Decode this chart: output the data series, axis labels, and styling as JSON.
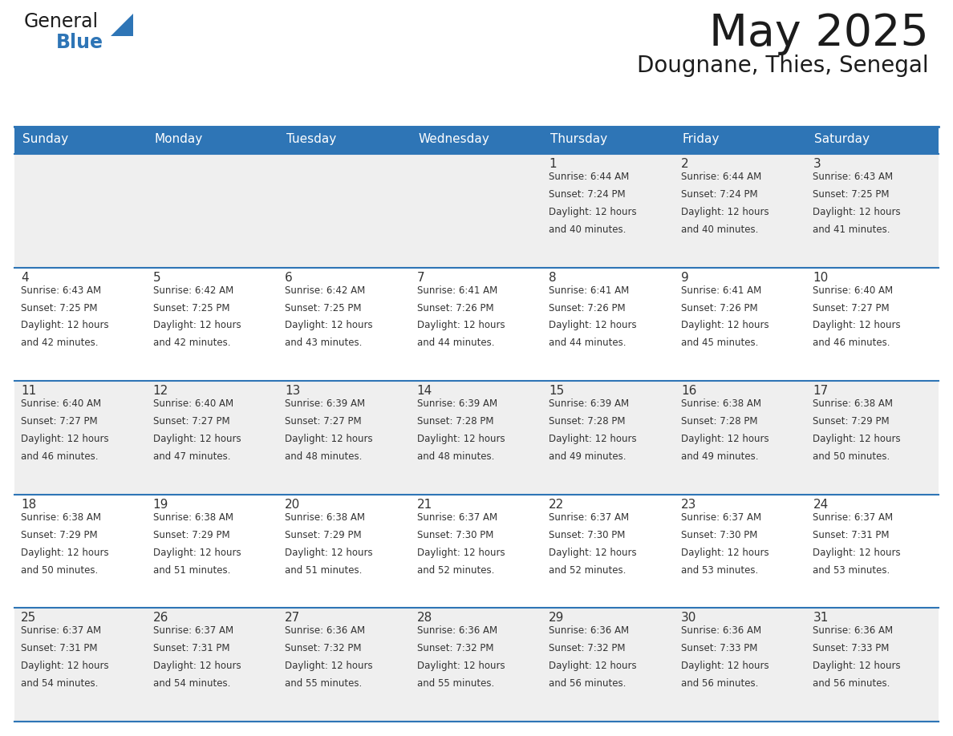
{
  "title": "May 2025",
  "subtitle": "Dougnane, Thies, Senegal",
  "header_bg": "#2E75B6",
  "header_text_color": "#FFFFFF",
  "days_of_week": [
    "Sunday",
    "Monday",
    "Tuesday",
    "Wednesday",
    "Thursday",
    "Friday",
    "Saturday"
  ],
  "row_bg_even": "#EFEFEF",
  "row_bg_odd": "#FFFFFF",
  "cell_text_color": "#333333",
  "day_num_color": "#333333",
  "grid_color": "#2E75B6",
  "calendar": [
    [
      {
        "day": null,
        "sunrise": null,
        "sunset": null,
        "daylight": null
      },
      {
        "day": null,
        "sunrise": null,
        "sunset": null,
        "daylight": null
      },
      {
        "day": null,
        "sunrise": null,
        "sunset": null,
        "daylight": null
      },
      {
        "day": null,
        "sunrise": null,
        "sunset": null,
        "daylight": null
      },
      {
        "day": 1,
        "sunrise": "6:44 AM",
        "sunset": "7:24 PM",
        "daylight": "12 hours\nand 40 minutes."
      },
      {
        "day": 2,
        "sunrise": "6:44 AM",
        "sunset": "7:24 PM",
        "daylight": "12 hours\nand 40 minutes."
      },
      {
        "day": 3,
        "sunrise": "6:43 AM",
        "sunset": "7:25 PM",
        "daylight": "12 hours\nand 41 minutes."
      }
    ],
    [
      {
        "day": 4,
        "sunrise": "6:43 AM",
        "sunset": "7:25 PM",
        "daylight": "12 hours\nand 42 minutes."
      },
      {
        "day": 5,
        "sunrise": "6:42 AM",
        "sunset": "7:25 PM",
        "daylight": "12 hours\nand 42 minutes."
      },
      {
        "day": 6,
        "sunrise": "6:42 AM",
        "sunset": "7:25 PM",
        "daylight": "12 hours\nand 43 minutes."
      },
      {
        "day": 7,
        "sunrise": "6:41 AM",
        "sunset": "7:26 PM",
        "daylight": "12 hours\nand 44 minutes."
      },
      {
        "day": 8,
        "sunrise": "6:41 AM",
        "sunset": "7:26 PM",
        "daylight": "12 hours\nand 44 minutes."
      },
      {
        "day": 9,
        "sunrise": "6:41 AM",
        "sunset": "7:26 PM",
        "daylight": "12 hours\nand 45 minutes."
      },
      {
        "day": 10,
        "sunrise": "6:40 AM",
        "sunset": "7:27 PM",
        "daylight": "12 hours\nand 46 minutes."
      }
    ],
    [
      {
        "day": 11,
        "sunrise": "6:40 AM",
        "sunset": "7:27 PM",
        "daylight": "12 hours\nand 46 minutes."
      },
      {
        "day": 12,
        "sunrise": "6:40 AM",
        "sunset": "7:27 PM",
        "daylight": "12 hours\nand 47 minutes."
      },
      {
        "day": 13,
        "sunrise": "6:39 AM",
        "sunset": "7:27 PM",
        "daylight": "12 hours\nand 48 minutes."
      },
      {
        "day": 14,
        "sunrise": "6:39 AM",
        "sunset": "7:28 PM",
        "daylight": "12 hours\nand 48 minutes."
      },
      {
        "day": 15,
        "sunrise": "6:39 AM",
        "sunset": "7:28 PM",
        "daylight": "12 hours\nand 49 minutes."
      },
      {
        "day": 16,
        "sunrise": "6:38 AM",
        "sunset": "7:28 PM",
        "daylight": "12 hours\nand 49 minutes."
      },
      {
        "day": 17,
        "sunrise": "6:38 AM",
        "sunset": "7:29 PM",
        "daylight": "12 hours\nand 50 minutes."
      }
    ],
    [
      {
        "day": 18,
        "sunrise": "6:38 AM",
        "sunset": "7:29 PM",
        "daylight": "12 hours\nand 50 minutes."
      },
      {
        "day": 19,
        "sunrise": "6:38 AM",
        "sunset": "7:29 PM",
        "daylight": "12 hours\nand 51 minutes."
      },
      {
        "day": 20,
        "sunrise": "6:38 AM",
        "sunset": "7:29 PM",
        "daylight": "12 hours\nand 51 minutes."
      },
      {
        "day": 21,
        "sunrise": "6:37 AM",
        "sunset": "7:30 PM",
        "daylight": "12 hours\nand 52 minutes."
      },
      {
        "day": 22,
        "sunrise": "6:37 AM",
        "sunset": "7:30 PM",
        "daylight": "12 hours\nand 52 minutes."
      },
      {
        "day": 23,
        "sunrise": "6:37 AM",
        "sunset": "7:30 PM",
        "daylight": "12 hours\nand 53 minutes."
      },
      {
        "day": 24,
        "sunrise": "6:37 AM",
        "sunset": "7:31 PM",
        "daylight": "12 hours\nand 53 minutes."
      }
    ],
    [
      {
        "day": 25,
        "sunrise": "6:37 AM",
        "sunset": "7:31 PM",
        "daylight": "12 hours\nand 54 minutes."
      },
      {
        "day": 26,
        "sunrise": "6:37 AM",
        "sunset": "7:31 PM",
        "daylight": "12 hours\nand 54 minutes."
      },
      {
        "day": 27,
        "sunrise": "6:36 AM",
        "sunset": "7:32 PM",
        "daylight": "12 hours\nand 55 minutes."
      },
      {
        "day": 28,
        "sunrise": "6:36 AM",
        "sunset": "7:32 PM",
        "daylight": "12 hours\nand 55 minutes."
      },
      {
        "day": 29,
        "sunrise": "6:36 AM",
        "sunset": "7:32 PM",
        "daylight": "12 hours\nand 56 minutes."
      },
      {
        "day": 30,
        "sunrise": "6:36 AM",
        "sunset": "7:33 PM",
        "daylight": "12 hours\nand 56 minutes."
      },
      {
        "day": 31,
        "sunrise": "6:36 AM",
        "sunset": "7:33 PM",
        "daylight": "12 hours\nand 56 minutes."
      }
    ]
  ]
}
